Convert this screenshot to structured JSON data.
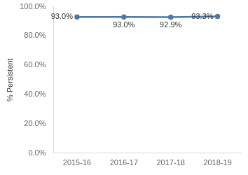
{
  "chart_data": {
    "type": "line",
    "y_label": "% Persistent",
    "categories": [
      "2015-16",
      "2016-17",
      "2017-18",
      "2018-19"
    ],
    "values": [
      93.0,
      93.0,
      92.9,
      93.3
    ],
    "value_labels": [
      "93.0%",
      "93.0%",
      "92.9%",
      "93.3%"
    ],
    "data_labels": true,
    "color": "#4e79a7",
    "marker": "circle",
    "ylim": [
      0,
      100
    ],
    "yticks": [
      {
        "value": 0,
        "label": "0.0%"
      },
      {
        "value": 20,
        "label": "20.0%"
      },
      {
        "value": 40,
        "label": "40.0%"
      },
      {
        "value": 60,
        "label": "60.0%"
      },
      {
        "value": 80,
        "label": "80.0%"
      },
      {
        "value": 100,
        "label": "100.0%"
      }
    ],
    "grid": false
  }
}
